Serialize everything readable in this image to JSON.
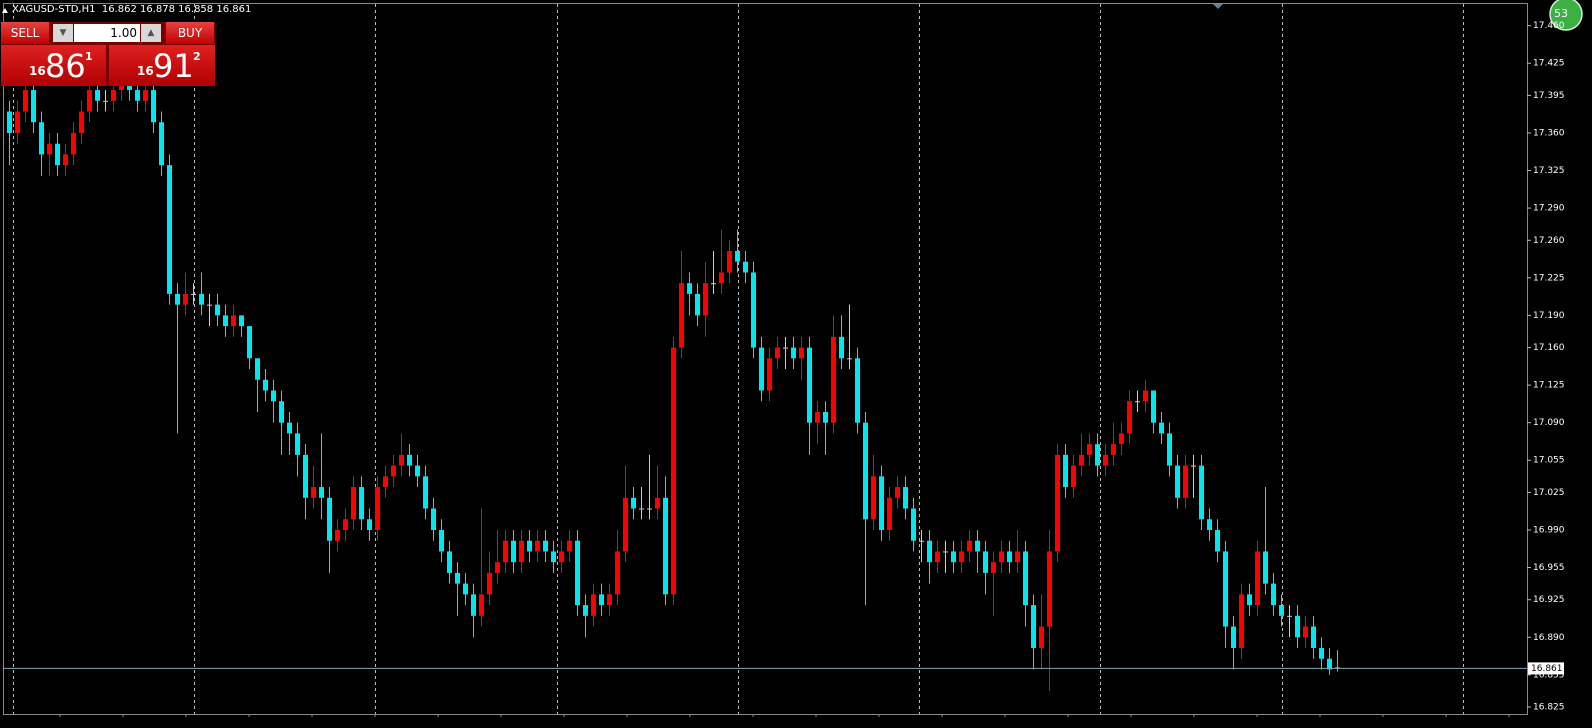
{
  "header": {
    "symbol": "XAGUSD-STD,H1",
    "ohlc_text": "16.862 16.878 16.858 16.861"
  },
  "trade_panel": {
    "sell": "SELL",
    "lot": "1.00",
    "buy": "BUY",
    "sell_price": {
      "prefix": "16",
      "main": "86",
      "sup": "1"
    },
    "buy_price": {
      "prefix": "16",
      "main": "91",
      "sup": "2"
    }
  },
  "badge": "53",
  "chart_data": {
    "type": "candlestick",
    "up_color": "#ff0000",
    "down_color": "#00e8ef",
    "grid": true,
    "ylim": [
      16.8185,
      17.4802
    ],
    "yticks": [
      16.825,
      16.855,
      {
        "value": 16.89,
        "label": "16.890"
      },
      16.925,
      16.955,
      {
        "value": 16.99,
        "label": "16.990"
      },
      17.025,
      17.055,
      {
        "value": 17.09,
        "label": "17.090"
      },
      17.125,
      {
        "value": 17.16,
        "label": "17.160"
      },
      {
        "value": 17.19,
        "label": "17.190"
      },
      17.225,
      {
        "value": 17.26,
        "label": "17.260"
      },
      {
        "value": 17.29,
        "label": "17.290"
      },
      17.325,
      {
        "value": 17.36,
        "label": "17.360"
      },
      17.395,
      17.425,
      {
        "value": 17.46,
        "label": "17.460"
      }
    ],
    "current_price": {
      "value": 16.861,
      "label": "16.861"
    },
    "ohlc": [
      [
        17.38,
        17.39,
        17.33,
        17.36
      ],
      [
        17.36,
        17.39,
        17.35,
        17.38
      ],
      [
        17.38,
        17.41,
        17.37,
        17.4
      ],
      [
        17.4,
        17.41,
        17.36,
        17.37
      ],
      [
        17.37,
        17.38,
        17.32,
        17.34
      ],
      [
        17.34,
        17.36,
        17.32,
        17.35
      ],
      [
        17.35,
        17.36,
        17.32,
        17.33
      ],
      [
        17.33,
        17.35,
        17.32,
        17.34
      ],
      [
        17.34,
        17.37,
        17.33,
        17.36
      ],
      [
        17.36,
        17.39,
        17.35,
        17.38
      ],
      [
        17.38,
        17.41,
        17.37,
        17.4
      ],
      [
        17.4,
        17.41,
        17.38,
        17.39
      ],
      [
        17.39,
        17.4,
        17.38,
        17.39
      ],
      [
        17.39,
        17.41,
        17.38,
        17.4
      ],
      [
        17.4,
        17.42,
        17.39,
        17.41
      ],
      [
        17.41,
        17.42,
        17.39,
        17.4
      ],
      [
        17.4,
        17.41,
        17.38,
        17.39
      ],
      [
        17.39,
        17.41,
        17.38,
        17.4
      ],
      [
        17.4,
        17.41,
        17.36,
        17.37
      ],
      [
        17.37,
        17.38,
        17.32,
        17.33
      ],
      [
        17.33,
        17.34,
        17.2,
        17.21
      ],
      [
        17.21,
        17.22,
        17.08,
        17.2
      ],
      [
        17.2,
        17.23,
        17.19,
        17.21
      ],
      [
        17.21,
        17.22,
        17.2,
        17.21
      ],
      [
        17.21,
        17.23,
        17.19,
        17.2
      ],
      [
        17.2,
        17.21,
        17.18,
        17.2
      ],
      [
        17.2,
        17.21,
        17.18,
        17.19
      ],
      [
        17.19,
        17.2,
        17.17,
        17.18
      ],
      [
        17.18,
        17.2,
        17.17,
        17.19
      ],
      [
        17.19,
        17.19,
        17.17,
        17.18
      ],
      [
        17.18,
        17.18,
        17.14,
        17.15
      ],
      [
        17.15,
        17.15,
        17.1,
        17.13
      ],
      [
        17.13,
        17.14,
        17.11,
        17.12
      ],
      [
        17.12,
        17.13,
        17.09,
        17.11
      ],
      [
        17.11,
        17.12,
        17.06,
        17.09
      ],
      [
        17.09,
        17.1,
        17.06,
        17.08
      ],
      [
        17.08,
        17.09,
        17.04,
        17.06
      ],
      [
        17.06,
        17.07,
        17.0,
        17.02
      ],
      [
        17.02,
        17.05,
        17.01,
        17.03
      ],
      [
        17.03,
        17.08,
        17.0,
        17.02
      ],
      [
        17.02,
        17.03,
        16.95,
        16.98
      ],
      [
        16.98,
        17.0,
        16.97,
        16.99
      ],
      [
        16.99,
        17.01,
        16.98,
        17.0
      ],
      [
        17.0,
        17.04,
        16.99,
        17.03
      ],
      [
        17.03,
        17.04,
        16.99,
        17.0
      ],
      [
        17.0,
        17.01,
        16.98,
        16.99
      ],
      [
        16.99,
        17.04,
        16.98,
        17.03
      ],
      [
        17.03,
        17.05,
        17.02,
        17.04
      ],
      [
        17.04,
        17.06,
        17.03,
        17.05
      ],
      [
        17.05,
        17.08,
        17.04,
        17.06
      ],
      [
        17.06,
        17.07,
        17.04,
        17.05
      ],
      [
        17.05,
        17.06,
        17.03,
        17.04
      ],
      [
        17.04,
        17.05,
        17.0,
        17.01
      ],
      [
        17.01,
        17.02,
        16.98,
        16.99
      ],
      [
        16.99,
        17.0,
        16.96,
        16.97
      ],
      [
        16.97,
        16.98,
        16.94,
        16.95
      ],
      [
        16.95,
        16.96,
        16.91,
        16.94
      ],
      [
        16.94,
        16.95,
        16.92,
        16.93
      ],
      [
        16.93,
        16.94,
        16.89,
        16.91
      ],
      [
        16.91,
        17.01,
        16.9,
        16.93
      ],
      [
        16.93,
        16.97,
        16.92,
        16.95
      ],
      [
        16.95,
        16.99,
        16.94,
        16.96
      ],
      [
        16.96,
        16.99,
        16.95,
        16.98
      ],
      [
        16.98,
        16.99,
        16.95,
        16.96
      ],
      [
        16.96,
        16.99,
        16.95,
        16.98
      ],
      [
        16.98,
        16.99,
        16.96,
        16.97
      ],
      [
        16.97,
        16.99,
        16.96,
        16.98
      ],
      [
        16.98,
        16.99,
        16.96,
        16.97
      ],
      [
        16.97,
        16.98,
        16.95,
        16.96
      ],
      [
        16.96,
        16.98,
        16.95,
        16.97
      ],
      [
        16.97,
        16.99,
        16.96,
        16.98
      ],
      [
        16.98,
        16.99,
        16.91,
        16.92
      ],
      [
        16.92,
        16.93,
        16.89,
        16.91
      ],
      [
        16.91,
        16.94,
        16.9,
        16.93
      ],
      [
        16.93,
        16.94,
        16.91,
        16.92
      ],
      [
        16.92,
        16.94,
        16.91,
        16.93
      ],
      [
        16.93,
        16.99,
        16.92,
        16.97
      ],
      [
        16.97,
        17.05,
        16.96,
        17.02
      ],
      [
        17.02,
        17.03,
        17.0,
        17.01
      ],
      [
        17.01,
        17.03,
        17.0,
        17.01
      ],
      [
        17.01,
        17.06,
        17.0,
        17.01
      ],
      [
        17.01,
        17.05,
        17.0,
        17.02
      ],
      [
        17.02,
        17.04,
        16.92,
        16.93
      ],
      [
        16.93,
        17.17,
        16.92,
        17.16
      ],
      [
        17.16,
        17.25,
        17.15,
        17.22
      ],
      [
        17.22,
        17.23,
        17.19,
        17.21
      ],
      [
        17.21,
        17.22,
        17.18,
        17.19
      ],
      [
        17.19,
        17.24,
        17.17,
        17.22
      ],
      [
        17.22,
        17.25,
        17.21,
        17.22
      ],
      [
        17.22,
        17.27,
        17.21,
        17.23
      ],
      [
        17.23,
        17.26,
        17.22,
        17.25
      ],
      [
        17.25,
        17.27,
        17.23,
        17.24
      ],
      [
        17.24,
        17.25,
        17.22,
        17.23
      ],
      [
        17.23,
        17.24,
        17.15,
        17.16
      ],
      [
        17.16,
        17.17,
        17.11,
        17.12
      ],
      [
        17.12,
        17.16,
        17.11,
        17.15
      ],
      [
        17.15,
        17.17,
        17.14,
        17.16
      ],
      [
        17.16,
        17.17,
        17.14,
        17.16
      ],
      [
        17.16,
        17.17,
        17.14,
        17.15
      ],
      [
        17.15,
        17.17,
        17.13,
        17.16
      ],
      [
        17.16,
        17.17,
        17.06,
        17.09
      ],
      [
        17.09,
        17.11,
        17.07,
        17.1
      ],
      [
        17.1,
        17.11,
        17.06,
        17.09
      ],
      [
        17.09,
        17.19,
        17.08,
        17.17
      ],
      [
        17.17,
        17.19,
        17.14,
        17.15
      ],
      [
        17.15,
        17.2,
        17.14,
        17.15
      ],
      [
        17.15,
        17.16,
        17.08,
        17.09
      ],
      [
        17.09,
        17.1,
        16.92,
        17.0
      ],
      [
        17.0,
        17.06,
        16.99,
        17.04
      ],
      [
        17.04,
        17.05,
        16.98,
        16.99
      ],
      [
        16.99,
        17.03,
        16.98,
        17.02
      ],
      [
        17.02,
        17.04,
        17.01,
        17.03
      ],
      [
        17.03,
        17.04,
        17.0,
        17.01
      ],
      [
        17.01,
        17.02,
        16.97,
        16.98
      ],
      [
        16.98,
        16.99,
        16.96,
        16.98
      ],
      [
        16.98,
        16.99,
        16.94,
        16.96
      ],
      [
        16.96,
        16.98,
        16.95,
        16.97
      ],
      [
        16.97,
        16.98,
        16.95,
        16.97
      ],
      [
        16.97,
        16.98,
        16.95,
        16.96
      ],
      [
        16.96,
        16.98,
        16.95,
        16.97
      ],
      [
        16.97,
        16.99,
        16.96,
        16.98
      ],
      [
        16.98,
        16.99,
        16.95,
        16.97
      ],
      [
        16.97,
        16.98,
        16.93,
        16.95
      ],
      [
        16.95,
        16.97,
        16.91,
        16.96
      ],
      [
        16.96,
        16.98,
        16.95,
        16.97
      ],
      [
        16.97,
        16.98,
        16.95,
        16.96
      ],
      [
        16.96,
        16.99,
        16.95,
        16.97
      ],
      [
        16.97,
        16.98,
        16.9,
        16.92
      ],
      [
        16.92,
        16.93,
        16.86,
        16.88
      ],
      [
        16.88,
        16.93,
        16.86,
        16.9
      ],
      [
        16.9,
        16.99,
        16.84,
        16.97
      ],
      [
        16.97,
        17.07,
        16.96,
        17.06
      ],
      [
        17.06,
        17.07,
        17.02,
        17.03
      ],
      [
        17.03,
        17.06,
        17.02,
        17.05
      ],
      [
        17.05,
        17.08,
        17.04,
        17.06
      ],
      [
        17.06,
        17.08,
        17.05,
        17.07
      ],
      [
        17.07,
        17.08,
        17.04,
        17.05
      ],
      [
        17.05,
        17.07,
        17.04,
        17.06
      ],
      [
        17.06,
        17.09,
        17.05,
        17.07
      ],
      [
        17.07,
        17.09,
        17.06,
        17.08
      ],
      [
        17.08,
        17.12,
        17.07,
        17.11
      ],
      [
        17.11,
        17.12,
        17.1,
        17.11
      ],
      [
        17.11,
        17.13,
        17.1,
        17.12
      ],
      [
        17.12,
        17.12,
        17.08,
        17.09
      ],
      [
        17.09,
        17.1,
        17.07,
        17.08
      ],
      [
        17.08,
        17.09,
        17.04,
        17.05
      ],
      [
        17.05,
        17.06,
        17.01,
        17.02
      ],
      [
        17.02,
        17.06,
        17.01,
        17.05
      ],
      [
        17.05,
        17.06,
        17.02,
        17.05
      ],
      [
        17.05,
        17.06,
        16.99,
        17.0
      ],
      [
        17.0,
        17.01,
        16.98,
        16.99
      ],
      [
        16.99,
        17.0,
        16.96,
        16.97
      ],
      [
        16.97,
        16.98,
        16.88,
        16.9
      ],
      [
        16.9,
        16.91,
        16.86,
        16.88
      ],
      [
        16.88,
        16.94,
        16.87,
        16.93
      ],
      [
        16.93,
        16.94,
        16.91,
        16.92
      ],
      [
        16.92,
        16.98,
        16.91,
        16.97
      ],
      [
        16.97,
        17.03,
        16.93,
        16.94
      ],
      [
        16.94,
        16.95,
        16.91,
        16.92
      ],
      [
        16.92,
        16.93,
        16.9,
        16.91
      ],
      [
        16.91,
        16.92,
        16.89,
        16.91
      ],
      [
        16.91,
        16.92,
        16.88,
        16.89
      ],
      [
        16.89,
        16.91,
        16.88,
        16.9
      ],
      [
        16.9,
        16.91,
        16.87,
        16.88
      ],
      [
        16.88,
        16.89,
        16.86,
        16.87
      ],
      [
        16.87,
        16.88,
        16.855,
        16.86
      ],
      [
        16.862,
        16.878,
        16.858,
        16.861
      ]
    ]
  }
}
